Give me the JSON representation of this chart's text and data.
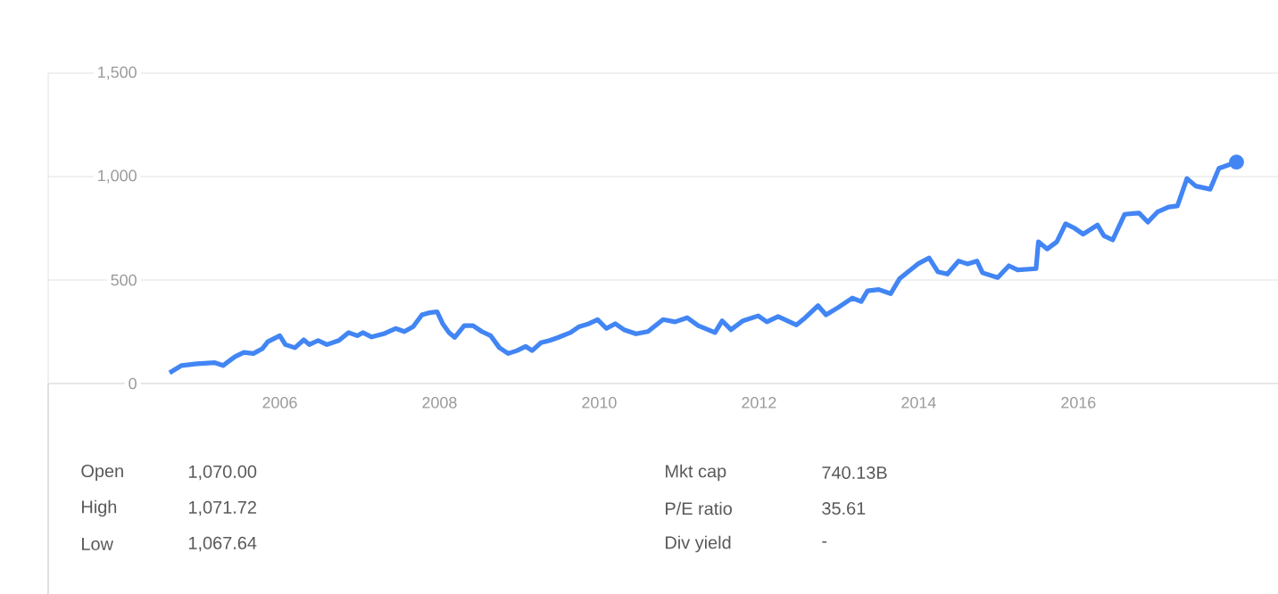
{
  "chart_data": {
    "type": "line",
    "xlim": [
      2003.1,
      2018.5
    ],
    "ylim": [
      0,
      1500
    ],
    "xticks": [
      2006,
      2008,
      2010,
      2012,
      2014,
      2016
    ],
    "yticks": [
      0,
      500,
      {
        "value": 1000,
        "label": "1,000"
      },
      {
        "value": 1500,
        "label": "1,500"
      }
    ],
    "grid": "y",
    "series": [
      {
        "color": "#4285f4",
        "marker": "none",
        "line_style": "solid",
        "x": [
          2004.62,
          2004.77,
          2004.96,
          2005.18,
          2005.29,
          2005.44,
          2005.55,
          2005.67,
          2005.78,
          2005.85,
          2006.0,
          2006.07,
          2006.19,
          2006.3,
          2006.37,
          2006.48,
          2006.59,
          2006.74,
          2006.86,
          2006.97,
          2007.04,
          2007.15,
          2007.3,
          2007.45,
          2007.56,
          2007.67,
          2007.78,
          2007.86,
          2007.97,
          2008.04,
          2008.12,
          2008.19,
          2008.31,
          2008.42,
          2008.53,
          2008.64,
          2008.75,
          2008.86,
          2008.97,
          2009.08,
          2009.16,
          2009.27,
          2009.38,
          2009.49,
          2009.64,
          2009.75,
          2009.87,
          2009.98,
          2010.09,
          2010.2,
          2010.31,
          2010.46,
          2010.61,
          2010.8,
          2010.95,
          2011.1,
          2011.24,
          2011.45,
          2011.54,
          2011.65,
          2011.8,
          2011.99,
          2012.1,
          2012.24,
          2012.47,
          2012.58,
          2012.74,
          2012.84,
          2012.99,
          2013.17,
          2013.28,
          2013.36,
          2013.5,
          2013.65,
          2013.76,
          2013.99,
          2014.13,
          2014.24,
          2014.36,
          2014.5,
          2014.61,
          2014.73,
          2014.8,
          2014.99,
          2015.13,
          2015.24,
          2015.47,
          2015.5,
          2015.61,
          2015.73,
          2015.84,
          2015.95,
          2016.06,
          2016.24,
          2016.32,
          2016.43,
          2016.58,
          2016.76,
          2016.87,
          2016.99,
          2017.13,
          2017.24,
          2017.36,
          2017.47,
          2017.65,
          2017.76,
          2017.87,
          2017.98
        ],
        "values": [
          52,
          87,
          95,
          101,
          87,
          130,
          150,
          145,
          168,
          202,
          231,
          188,
          173,
          211,
          188,
          208,
          188,
          208,
          246,
          231,
          246,
          225,
          240,
          266,
          251,
          275,
          332,
          341,
          347,
          289,
          246,
          223,
          280,
          280,
          251,
          231,
          173,
          145,
          159,
          179,
          159,
          197,
          208,
          223,
          246,
          275,
          289,
          309,
          266,
          289,
          260,
          240,
          251,
          309,
          298,
          318,
          280,
          246,
          303,
          260,
          303,
          327,
          298,
          324,
          283,
          318,
          376,
          332,
          367,
          413,
          396,
          448,
          454,
          434,
          506,
          578,
          607,
          540,
          529,
          592,
          578,
          592,
          535,
          512,
          569,
          549,
          555,
          685,
          650,
          685,
          772,
          751,
          722,
          766,
          714,
          694,
          818,
          824,
          780,
          829,
          853,
          858,
          991,
          954,
          939,
          1040,
          1055,
          1070
        ]
      },
      {
        "type": "scatter",
        "color": "#4285f4",
        "marker": "circle",
        "x": [
          2017.98
        ],
        "values": [
          1070
        ]
      }
    ],
    "annotations": [
      "Open",
      "1,070.00",
      "High",
      "1,071.72",
      "Low",
      "1,067.64",
      "Mkt cap",
      "740.13B",
      "P/E ratio",
      "35.61",
      "Div yield",
      "-"
    ]
  }
}
